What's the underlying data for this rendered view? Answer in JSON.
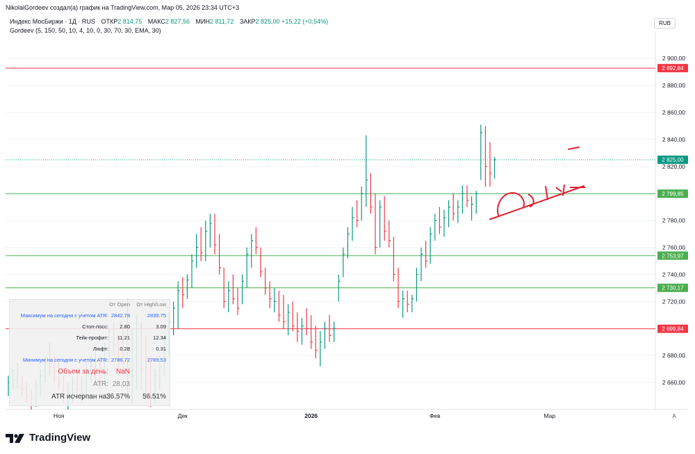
{
  "header": {
    "author_line": "NikolaiGordeev создал(а) график на TradingView.com, Мар 05, 2026 23:34 UTC+3",
    "symbol": "Индекс МосБиржи · 1Д · RUS",
    "open_label": "ОТКР",
    "open_value": "2 814,75",
    "high_label": "МАКС",
    "high_value": "2 827,56",
    "low_label": "МИН",
    "low_value": "2 811,72",
    "close_label": "ЗАКР",
    "close_value": "2 825,00",
    "change": "+15,22 (+0,54%)",
    "indicator": "Gordeev (5, 150, 50, 10, 4, 10, 0, 30, 70, 30, EMA, 30)",
    "currency": "RUB"
  },
  "stats": {
    "col_open": "От Open",
    "col_highlow": "От High/Low",
    "rows": [
      {
        "label": "Максимум на сегодня с учетом ATR:",
        "open": "2842.78",
        "highlow": "2839.75",
        "style": "blue"
      },
      {
        "label": "Стоп-лосс:",
        "open": "2.80",
        "highlow": "3.09",
        "style": "plain"
      },
      {
        "label": "Тейк-профит:",
        "open": "11.21",
        "highlow": "12.34",
        "style": "plain"
      },
      {
        "label": "Люфт:",
        "open": "0.28",
        "highlow": "0.31",
        "style": "plain"
      },
      {
        "label": "Минимум на сегодня с учетом ATR:",
        "open": "2786.72",
        "highlow": "2789.53",
        "style": "blue"
      }
    ],
    "volume_label": "Объем за день:",
    "volume_value": "NaN",
    "atr_label": "ATR:",
    "atr_value": "28.03",
    "atr_used_label": "ATR исчерпан на:",
    "atr_used_open": "36.57%",
    "atr_used_hl": "56.51%"
  },
  "nav_a": "A",
  "logo": "TradingView",
  "colors": {
    "up": "#089981",
    "down": "#f23645",
    "red_line": "#f23645",
    "green_line": "#4caf50",
    "drawing": "#e0202f"
  },
  "chart_data": {
    "type": "candlestick-bars",
    "y_range": [
      2640,
      2915
    ],
    "y_ticks": [
      2660,
      2680,
      2700,
      2720,
      2740,
      2760,
      2780,
      2800,
      2820,
      2840,
      2860,
      2880,
      2900
    ],
    "y_tick_labels": [
      "2 660,00",
      "2 680,00",
      "2 700,00",
      "2 720,00",
      "2 740,00",
      "2 760,00",
      "2 780,00",
      "2 800,00",
      "2 820,00",
      "2 840,00",
      "2 860,00",
      "2 880,00",
      "2 900,00"
    ],
    "x_labels": [
      {
        "text": "Ноя",
        "index": 11
      },
      {
        "text": "Дек",
        "index": 38
      },
      {
        "text": "2026",
        "index": 66
      },
      {
        "text": "Фев",
        "index": 93
      },
      {
        "text": "Мар",
        "index": 118
      }
    ],
    "horizontal_levels": [
      {
        "value": 2892.84,
        "label": "2 892,84",
        "color": "red"
      },
      {
        "value": 2799.85,
        "label": "2 799,85",
        "color": "green"
      },
      {
        "value": 2753.97,
        "label": "2 753,97",
        "color": "green"
      },
      {
        "value": 2730.17,
        "label": "2 730,17",
        "color": "green"
      },
      {
        "value": 2699.84,
        "label": "2 699,84",
        "color": "red"
      }
    ],
    "last_price": {
      "value": 2825.0,
      "label": "2 825,00"
    },
    "bars": [
      {
        "h": 2665,
        "l": 2650,
        "c": 2660,
        "up": true
      },
      {
        "h": 2670,
        "l": 2655,
        "c": 2662,
        "up": true
      },
      {
        "h": 2675,
        "l": 2655,
        "c": 2668,
        "up": true
      },
      {
        "h": 2665,
        "l": 2650,
        "c": 2655,
        "up": false
      },
      {
        "h": 2660,
        "l": 2645,
        "c": 2650,
        "up": false
      },
      {
        "h": 2655,
        "l": 2640,
        "c": 2648,
        "up": false
      },
      {
        "h": 2662,
        "l": 2642,
        "c": 2658,
        "up": true
      },
      {
        "h": 2670,
        "l": 2650,
        "c": 2665,
        "up": true
      },
      {
        "h": 2680,
        "l": 2660,
        "c": 2675,
        "up": true
      },
      {
        "h": 2690,
        "l": 2665,
        "c": 2672,
        "up": false
      },
      {
        "h": 2680,
        "l": 2660,
        "c": 2668,
        "up": false
      },
      {
        "h": 2675,
        "l": 2655,
        "c": 2660,
        "up": false
      },
      {
        "h": 2665,
        "l": 2645,
        "c": 2652,
        "up": false
      },
      {
        "h": 2660,
        "l": 2640,
        "c": 2650,
        "up": true
      },
      {
        "h": 2665,
        "l": 2645,
        "c": 2660,
        "up": true
      },
      {
        "h": 2670,
        "l": 2650,
        "c": 2655,
        "up": false
      },
      {
        "h": 2665,
        "l": 2645,
        "c": 2660,
        "up": true
      },
      {
        "h": 2675,
        "l": 2650,
        "c": 2668,
        "up": true
      },
      {
        "h": 2680,
        "l": 2660,
        "c": 2672,
        "up": true
      },
      {
        "h": 2685,
        "l": 2660,
        "c": 2670,
        "up": false
      },
      {
        "h": 2680,
        "l": 2655,
        "c": 2665,
        "up": false
      },
      {
        "h": 2690,
        "l": 2660,
        "c": 2685,
        "up": true
      },
      {
        "h": 2700,
        "l": 2675,
        "c": 2690,
        "up": true
      },
      {
        "h": 2705,
        "l": 2680,
        "c": 2688,
        "up": false
      },
      {
        "h": 2695,
        "l": 2670,
        "c": 2680,
        "up": false
      },
      {
        "h": 2700,
        "l": 2665,
        "c": 2675,
        "up": false
      },
      {
        "h": 2722,
        "l": 2648,
        "c": 2660,
        "up": false
      },
      {
        "h": 2700,
        "l": 2645,
        "c": 2665,
        "up": true
      },
      {
        "h": 2710,
        "l": 2655,
        "c": 2700,
        "up": true
      },
      {
        "h": 2705,
        "l": 2655,
        "c": 2670,
        "up": false
      },
      {
        "h": 2695,
        "l": 2650,
        "c": 2660,
        "up": false
      },
      {
        "h": 2680,
        "l": 2642,
        "c": 2650,
        "up": false
      },
      {
        "h": 2670,
        "l": 2645,
        "c": 2665,
        "up": true
      },
      {
        "h": 2680,
        "l": 2655,
        "c": 2672,
        "up": true
      },
      {
        "h": 2695,
        "l": 2665,
        "c": 2690,
        "up": true
      },
      {
        "h": 2712,
        "l": 2680,
        "c": 2705,
        "up": true
      },
      {
        "h": 2720,
        "l": 2695,
        "c": 2715,
        "up": true
      },
      {
        "h": 2735,
        "l": 2700,
        "c": 2728,
        "up": true
      },
      {
        "h": 2738,
        "l": 2715,
        "c": 2725,
        "up": false
      },
      {
        "h": 2740,
        "l": 2722,
        "c": 2736,
        "up": true
      },
      {
        "h": 2755,
        "l": 2730,
        "c": 2750,
        "up": true
      },
      {
        "h": 2770,
        "l": 2745,
        "c": 2760,
        "up": true
      },
      {
        "h": 2775,
        "l": 2750,
        "c": 2756,
        "up": false
      },
      {
        "h": 2780,
        "l": 2750,
        "c": 2772,
        "up": true
      },
      {
        "h": 2785,
        "l": 2760,
        "c": 2778,
        "up": true
      },
      {
        "h": 2785,
        "l": 2755,
        "c": 2762,
        "up": false
      },
      {
        "h": 2770,
        "l": 2740,
        "c": 2745,
        "up": false
      },
      {
        "h": 2745,
        "l": 2715,
        "c": 2720,
        "up": false
      },
      {
        "h": 2735,
        "l": 2712,
        "c": 2728,
        "up": true
      },
      {
        "h": 2740,
        "l": 2718,
        "c": 2722,
        "up": false
      },
      {
        "h": 2730,
        "l": 2710,
        "c": 2715,
        "up": false
      },
      {
        "h": 2740,
        "l": 2718,
        "c": 2735,
        "up": true
      },
      {
        "h": 2760,
        "l": 2730,
        "c": 2755,
        "up": true
      },
      {
        "h": 2770,
        "l": 2745,
        "c": 2765,
        "up": true
      },
      {
        "h": 2775,
        "l": 2755,
        "c": 2760,
        "up": false
      },
      {
        "h": 2760,
        "l": 2738,
        "c": 2742,
        "up": false
      },
      {
        "h": 2745,
        "l": 2725,
        "c": 2730,
        "up": false
      },
      {
        "h": 2735,
        "l": 2715,
        "c": 2722,
        "up": false
      },
      {
        "h": 2730,
        "l": 2712,
        "c": 2720,
        "up": true
      },
      {
        "h": 2728,
        "l": 2705,
        "c": 2710,
        "up": false
      },
      {
        "h": 2725,
        "l": 2700,
        "c": 2705,
        "up": false
      },
      {
        "h": 2718,
        "l": 2695,
        "c": 2712,
        "up": true
      },
      {
        "h": 2720,
        "l": 2698,
        "c": 2702,
        "up": false
      },
      {
        "h": 2712,
        "l": 2690,
        "c": 2698,
        "up": false
      },
      {
        "h": 2708,
        "l": 2688,
        "c": 2702,
        "up": true
      },
      {
        "h": 2715,
        "l": 2695,
        "c": 2700,
        "up": false
      },
      {
        "h": 2710,
        "l": 2685,
        "c": 2690,
        "up": false
      },
      {
        "h": 2702,
        "l": 2678,
        "c": 2684,
        "up": false
      },
      {
        "h": 2698,
        "l": 2672,
        "c": 2690,
        "up": true
      },
      {
        "h": 2705,
        "l": 2685,
        "c": 2700,
        "up": true
      },
      {
        "h": 2710,
        "l": 2690,
        "c": 2695,
        "up": false
      },
      {
        "h": 2705,
        "l": 2690,
        "c": 2700,
        "up": true
      },
      {
        "h": 2740,
        "l": 2720,
        "c": 2735,
        "up": true
      },
      {
        "h": 2760,
        "l": 2738,
        "c": 2755,
        "up": true
      },
      {
        "h": 2775,
        "l": 2752,
        "c": 2770,
        "up": true
      },
      {
        "h": 2790,
        "l": 2765,
        "c": 2782,
        "up": true
      },
      {
        "h": 2795,
        "l": 2775,
        "c": 2780,
        "up": false
      },
      {
        "h": 2805,
        "l": 2780,
        "c": 2800,
        "up": true
      },
      {
        "h": 2843,
        "l": 2790,
        "c": 2810,
        "up": true
      },
      {
        "h": 2815,
        "l": 2785,
        "c": 2790,
        "up": false
      },
      {
        "h": 2800,
        "l": 2755,
        "c": 2760,
        "up": false
      },
      {
        "h": 2795,
        "l": 2760,
        "c": 2790,
        "up": true
      },
      {
        "h": 2798,
        "l": 2765,
        "c": 2772,
        "up": false
      },
      {
        "h": 2780,
        "l": 2760,
        "c": 2765,
        "up": false
      },
      {
        "h": 2768,
        "l": 2735,
        "c": 2740,
        "up": false
      },
      {
        "h": 2745,
        "l": 2715,
        "c": 2720,
        "up": false
      },
      {
        "h": 2728,
        "l": 2708,
        "c": 2722,
        "up": true
      },
      {
        "h": 2728,
        "l": 2712,
        "c": 2718,
        "up": false
      },
      {
        "h": 2725,
        "l": 2712,
        "c": 2722,
        "up": true
      },
      {
        "h": 2745,
        "l": 2720,
        "c": 2740,
        "up": true
      },
      {
        "h": 2760,
        "l": 2735,
        "c": 2755,
        "up": true
      },
      {
        "h": 2765,
        "l": 2745,
        "c": 2750,
        "up": false
      },
      {
        "h": 2775,
        "l": 2748,
        "c": 2770,
        "up": true
      },
      {
        "h": 2785,
        "l": 2765,
        "c": 2780,
        "up": true
      },
      {
        "h": 2790,
        "l": 2770,
        "c": 2775,
        "up": false
      },
      {
        "h": 2788,
        "l": 2768,
        "c": 2782,
        "up": true
      },
      {
        "h": 2795,
        "l": 2775,
        "c": 2790,
        "up": true
      },
      {
        "h": 2800,
        "l": 2780,
        "c": 2785,
        "up": false
      },
      {
        "h": 2795,
        "l": 2778,
        "c": 2790,
        "up": true
      },
      {
        "h": 2806,
        "l": 2785,
        "c": 2800,
        "up": true
      },
      {
        "h": 2806,
        "l": 2790,
        "c": 2795,
        "up": false
      },
      {
        "h": 2798,
        "l": 2780,
        "c": 2792,
        "up": true
      },
      {
        "h": 2802,
        "l": 2785,
        "c": 2800,
        "up": true
      },
      {
        "h": 2851,
        "l": 2810,
        "c": 2845,
        "up": true
      },
      {
        "h": 2850,
        "l": 2805,
        "c": 2820,
        "up": false
      },
      {
        "h": 2838,
        "l": 2805,
        "c": 2815,
        "up": false
      },
      {
        "h": 2827,
        "l": 2811,
        "c": 2825,
        "up": true
      }
    ]
  }
}
